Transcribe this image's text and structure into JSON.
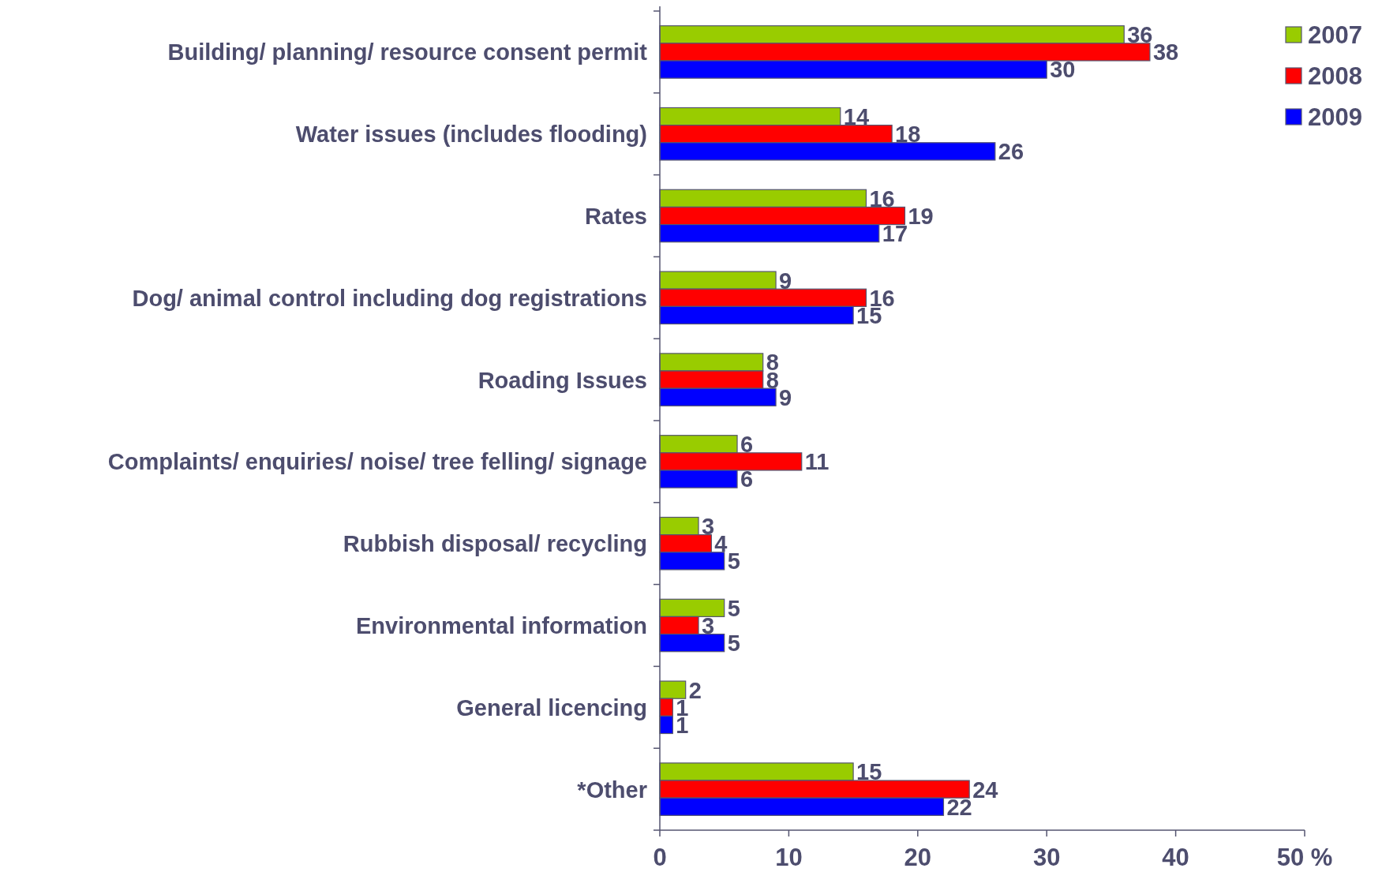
{
  "chart_data": {
    "type": "bar",
    "orientation": "horizontal",
    "categories": [
      "Building/ planning/ resource consent permit",
      "Water issues (includes flooding)",
      "Rates",
      "Dog/ animal control including dog registrations",
      "Roading Issues",
      "Complaints/ enquiries/ noise/ tree felling/ signage",
      "Rubbish disposal/ recycling",
      "Environmental information",
      "General licencing",
      "*Other"
    ],
    "series": [
      {
        "name": "2007",
        "color": "#99cc00",
        "values": [
          36,
          14,
          16,
          9,
          8,
          6,
          3,
          5,
          2,
          15
        ]
      },
      {
        "name": "2008",
        "color": "#ff0000",
        "values": [
          38,
          18,
          19,
          16,
          8,
          11,
          4,
          3,
          1,
          24
        ]
      },
      {
        "name": "2009",
        "color": "#0000ff",
        "values": [
          30,
          26,
          17,
          15,
          9,
          6,
          5,
          5,
          1,
          22
        ]
      }
    ],
    "xlim": [
      0,
      50
    ],
    "xticks": [
      0,
      10,
      20,
      30,
      40,
      {
        "value": 50,
        "label": "50 %"
      }
    ],
    "data_labels": true,
    "legend": "top right",
    "grid": false
  }
}
